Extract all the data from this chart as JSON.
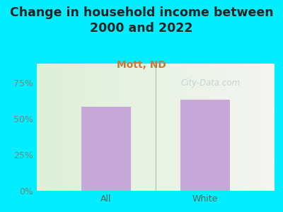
{
  "title": "Change in household income between\n2000 and 2022",
  "subtitle": "Mott, ND",
  "categories": [
    "All",
    "White"
  ],
  "values": [
    58,
    63
  ],
  "bar_color": "#c8a8d8",
  "title_fontsize": 12.5,
  "subtitle_fontsize": 10,
  "subtitle_color": "#cc7733",
  "tick_label_color": "#778877",
  "tick_label_fontsize": 9,
  "xlabel_color": "#556655",
  "xlabel_fontsize": 9,
  "ylim": [
    0,
    88
  ],
  "yticks": [
    0,
    25,
    50,
    75
  ],
  "ytick_labels": [
    "0%",
    "25%",
    "50%",
    "75%"
  ],
  "background_outer": "#00eeff",
  "plot_bg_left": "#ddf0d8",
  "plot_bg_right": "#f5f5f2",
  "divider_color": "#aabbaa",
  "watermark": "City-Data.com",
  "watermark_color": "#c0cfd0"
}
